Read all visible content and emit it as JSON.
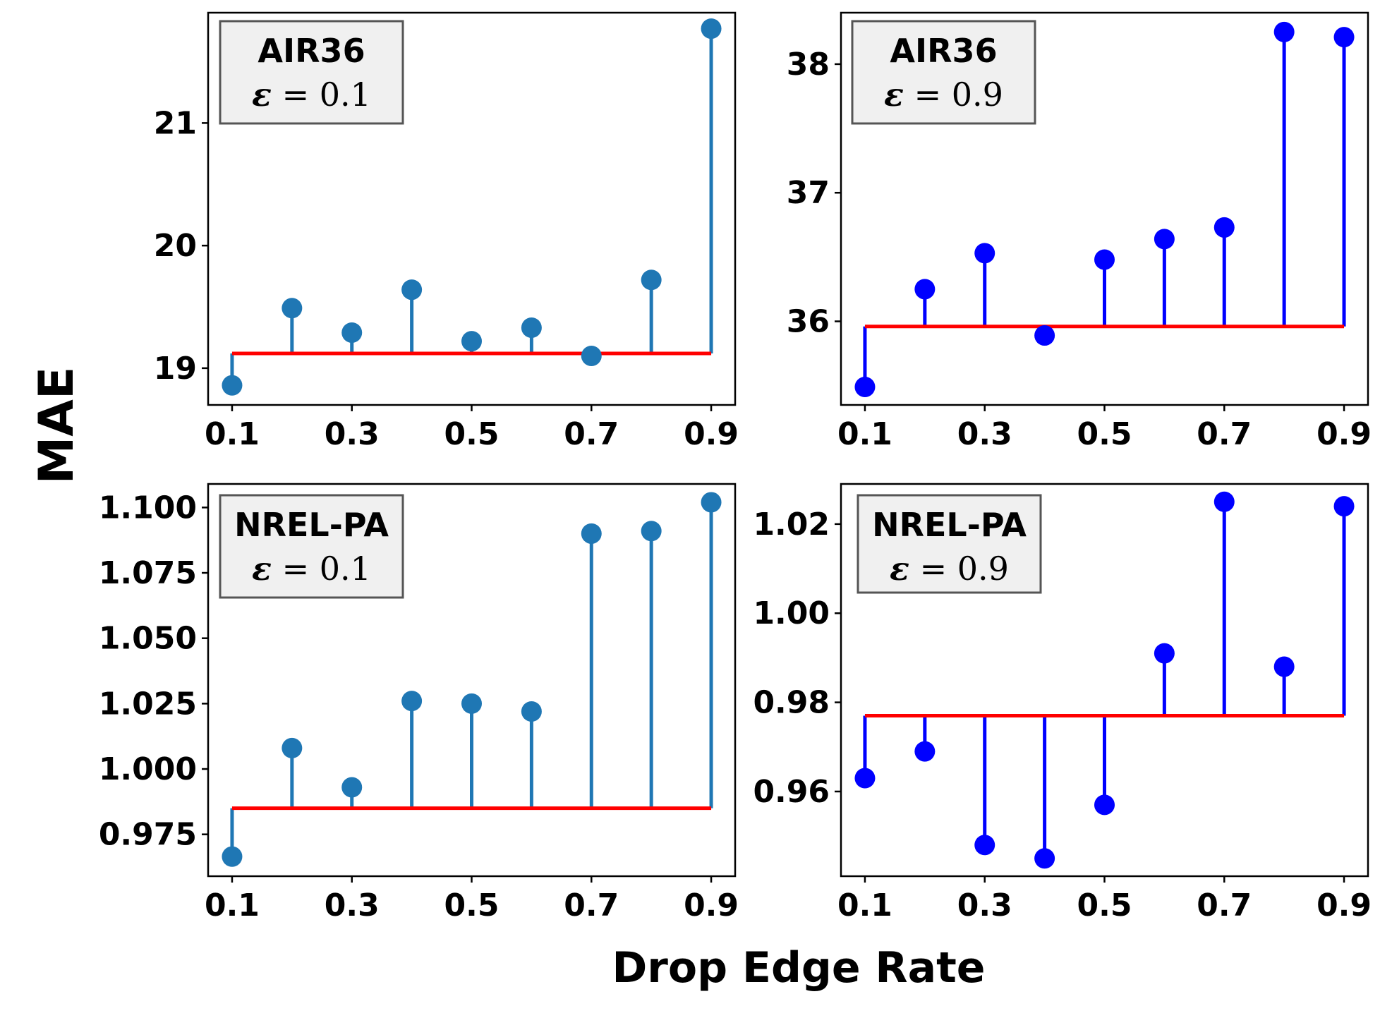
{
  "figure": {
    "ylabel": "MAE",
    "xlabel": "Drop Edge Rate"
  },
  "colors": {
    "stem_steelblue": "#1f77b4",
    "stem_blue": "#0000ff",
    "baseline_red": "#ff0000",
    "legend_bg": "#f0f0f0",
    "legend_border": "#555555"
  },
  "chart_data": [
    {
      "type": "stem",
      "dataset": "AIR36",
      "epsilon_label": "ε = 0.1",
      "color": "#1f77b4",
      "x": [
        0.1,
        0.2,
        0.3,
        0.4,
        0.5,
        0.6,
        0.7,
        0.8,
        0.9
      ],
      "values": [
        18.86,
        19.49,
        19.29,
        19.64,
        19.22,
        19.33,
        19.1,
        19.72,
        21.77
      ],
      "baseline": 19.12,
      "xticks": [
        0.1,
        0.3,
        0.5,
        0.7,
        0.9
      ],
      "xtick_labels": [
        "0.1",
        "0.3",
        "0.5",
        "0.7",
        "0.9"
      ],
      "xlim": [
        0.06,
        0.94
      ],
      "yticks": [
        19,
        20,
        21
      ],
      "ytick_labels": [
        "19",
        "20",
        "21"
      ],
      "ylim": [
        18.7,
        21.9
      ],
      "legend_position": "top-left"
    },
    {
      "type": "stem",
      "dataset": "AIR36",
      "epsilon_label": "ε = 0.9",
      "color": "#0000ff",
      "x": [
        0.1,
        0.2,
        0.3,
        0.4,
        0.5,
        0.6,
        0.7,
        0.8,
        0.9
      ],
      "values": [
        35.49,
        36.25,
        36.53,
        35.89,
        36.48,
        36.64,
        36.73,
        38.25,
        38.21
      ],
      "baseline": 35.96,
      "xticks": [
        0.1,
        0.3,
        0.5,
        0.7,
        0.9
      ],
      "xtick_labels": [
        "0.1",
        "0.3",
        "0.5",
        "0.7",
        "0.9"
      ],
      "xlim": [
        0.06,
        0.94
      ],
      "yticks": [
        36,
        37,
        38
      ],
      "ytick_labels": [
        "36",
        "37",
        "38"
      ],
      "ylim": [
        35.35,
        38.4
      ],
      "legend_position": "top-left"
    },
    {
      "type": "stem",
      "dataset": "NREL-PA",
      "epsilon_label": "ε = 0.1",
      "color": "#1f77b4",
      "x": [
        0.1,
        0.2,
        0.3,
        0.4,
        0.5,
        0.6,
        0.7,
        0.8,
        0.9
      ],
      "values": [
        0.9665,
        1.008,
        0.993,
        1.026,
        1.025,
        1.022,
        1.09,
        1.091,
        1.102
      ],
      "baseline": 0.985,
      "xticks": [
        0.1,
        0.3,
        0.5,
        0.7,
        0.9
      ],
      "xtick_labels": [
        "0.1",
        "0.3",
        "0.5",
        "0.7",
        "0.9"
      ],
      "xlim": [
        0.06,
        0.94
      ],
      "yticks": [
        0.975,
        1.0,
        1.025,
        1.05,
        1.075,
        1.1
      ],
      "ytick_labels": [
        "0.975",
        "1.000",
        "1.025",
        "1.050",
        "1.075",
        "1.100"
      ],
      "ylim": [
        0.959,
        1.109
      ],
      "legend_position": "top-left"
    },
    {
      "type": "stem",
      "dataset": "NREL-PA",
      "epsilon_label": "ε = 0.9",
      "color": "#0000ff",
      "x": [
        0.1,
        0.2,
        0.3,
        0.4,
        0.5,
        0.6,
        0.7,
        0.8,
        0.9
      ],
      "values": [
        0.963,
        0.969,
        0.948,
        0.945,
        0.957,
        0.991,
        1.025,
        0.988,
        1.024
      ],
      "baseline": 0.977,
      "xticks": [
        0.1,
        0.3,
        0.5,
        0.7,
        0.9
      ],
      "xtick_labels": [
        "0.1",
        "0.3",
        "0.5",
        "0.7",
        "0.9"
      ],
      "xlim": [
        0.06,
        0.94
      ],
      "yticks": [
        0.96,
        0.98,
        1.0,
        1.02
      ],
      "ytick_labels": [
        "0.96",
        "0.98",
        "1.00",
        "1.02"
      ],
      "ylim": [
        0.941,
        1.029
      ],
      "legend_position": "top-left"
    }
  ]
}
